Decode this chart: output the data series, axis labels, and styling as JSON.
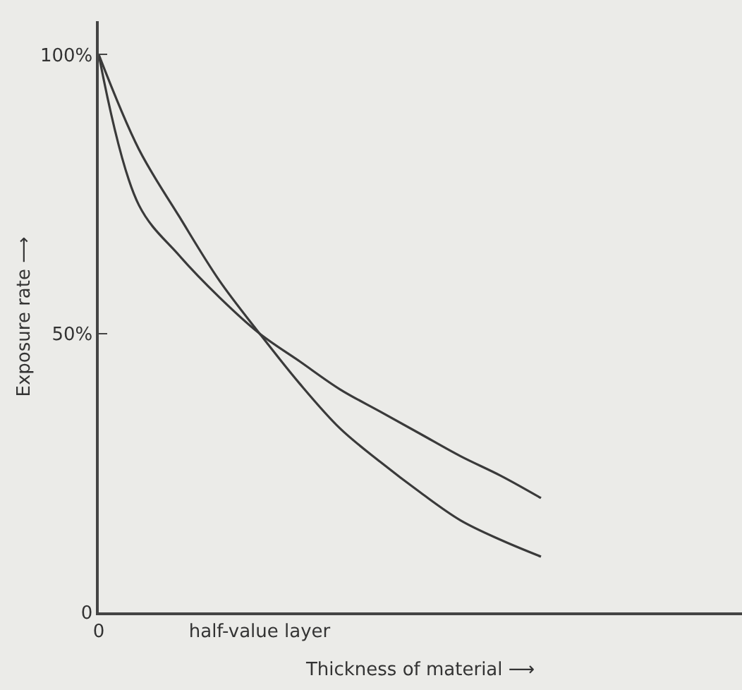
{
  "chart_data": {
    "type": "line",
    "xlabel": "Thickness of material ⟶",
    "ylabel": "Exposure rate ⟶",
    "categories": [
      "0",
      null,
      null,
      null,
      "half-value layer",
      null,
      null,
      null,
      null,
      null,
      null,
      null,
      null,
      null,
      null,
      null,
      null
    ],
    "ylim": [
      0,
      106
    ],
    "yticks": [
      0,
      {
        "value": 50,
        "label": "50%"
      },
      {
        "value": 100,
        "label": "100%"
      }
    ],
    "grid": false,
    "marker": "none",
    "line_style": "solid",
    "series": [
      {
        "color": "#3a3a3a",
        "values": [
          100,
          73,
          64,
          56.5,
          50,
          45,
          40,
          36,
          32,
          28,
          24.5,
          20.5,
          null,
          null,
          null,
          null,
          null
        ]
      },
      {
        "color": "#3a3a3a",
        "values": [
          100,
          83,
          71,
          59.5,
          50,
          41,
          33,
          27,
          21.5,
          16.5,
          13,
          10,
          null,
          null,
          null,
          null,
          null
        ]
      }
    ]
  }
}
